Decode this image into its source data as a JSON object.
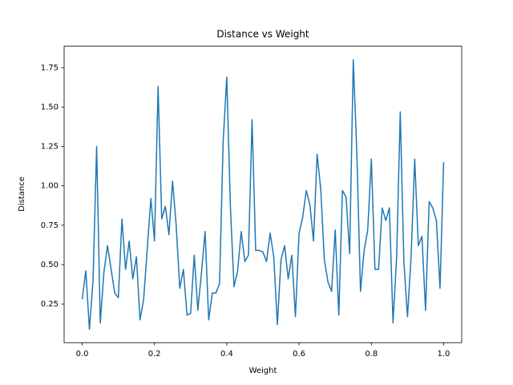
{
  "chart_data": {
    "type": "line",
    "title": "Distance vs Weight",
    "x_label": "Weight",
    "y_label": "Distance",
    "x": [
      0,
      0.01,
      0.02,
      0.03,
      0.04,
      0.05,
      0.06,
      0.07,
      0.08,
      0.09,
      0.1,
      0.11,
      0.12,
      0.13,
      0.14,
      0.15,
      0.16,
      0.17,
      0.18,
      0.19,
      0.2,
      0.21,
      0.22,
      0.23,
      0.24,
      0.25,
      0.26,
      0.27,
      0.28,
      0.29,
      0.3,
      0.31,
      0.32,
      0.33,
      0.34,
      0.35,
      0.36,
      0.37,
      0.38,
      0.39,
      0.4,
      0.41,
      0.42,
      0.43,
      0.44,
      0.45,
      0.46,
      0.47,
      0.48,
      0.49,
      0.5,
      0.51,
      0.52,
      0.53,
      0.54,
      0.55,
      0.56,
      0.57,
      0.58,
      0.59,
      0.6,
      0.61,
      0.62,
      0.63,
      0.64,
      0.65,
      0.66,
      0.67,
      0.68,
      0.69,
      0.7,
      0.71,
      0.72,
      0.73,
      0.74,
      0.75,
      0.76,
      0.77,
      0.78,
      0.79,
      0.8,
      0.81,
      0.82,
      0.83,
      0.84,
      0.85,
      0.86,
      0.87,
      0.88,
      0.89,
      0.9,
      0.91,
      0.92,
      0.93,
      0.94,
      0.95,
      0.96,
      0.97,
      0.98,
      0.99,
      1
    ],
    "series": [
      {
        "color": "#1f77b4",
        "values": [
          0.28,
          0.46,
          0.09,
          0.4,
          1.25,
          0.13,
          0.45,
          0.62,
          0.47,
          0.32,
          0.29,
          0.79,
          0.47,
          0.65,
          0.41,
          0.55,
          0.15,
          0.28,
          0.6,
          0.92,
          0.65,
          1.63,
          0.79,
          0.87,
          0.69,
          1.03,
          0.75,
          0.35,
          0.47,
          0.18,
          0.19,
          0.56,
          0.21,
          0.45,
          0.71,
          0.15,
          0.32,
          0.32,
          0.38,
          1.28,
          1.69,
          0.87,
          0.36,
          0.46,
          0.71,
          0.52,
          0.56,
          1.42,
          0.59,
          0.59,
          0.58,
          0.52,
          0.7,
          0.55,
          0.12,
          0.53,
          0.62,
          0.41,
          0.56,
          0.17,
          0.7,
          0.8,
          0.97,
          0.88,
          0.65,
          1.2,
          0.98,
          0.53,
          0.39,
          0.33,
          0.72,
          0.18,
          0.97,
          0.93,
          0.57,
          1.8,
          1.2,
          0.33,
          0.59,
          0.72,
          1.17,
          0.47,
          0.47,
          0.86,
          0.78,
          0.86,
          0.13,
          0.55,
          1.47,
          0.52,
          0.17,
          0.55,
          1.17,
          0.62,
          0.68,
          0.21,
          0.9,
          0.86,
          0.78,
          0.35,
          1.15
        ]
      }
    ],
    "xlim": [
      -0.05,
      1.05
    ],
    "xticks": [
      {
        "value": 0,
        "label": "0.0"
      },
      {
        "value": 0.2,
        "label": "0.2"
      },
      {
        "value": 0.4,
        "label": "0.4"
      },
      {
        "value": 0.6,
        "label": "0.6"
      },
      {
        "value": 0.8,
        "label": "0.8"
      },
      {
        "value": 1,
        "label": "1.0"
      }
    ],
    "ylim": [
      0.005,
      1.886
    ],
    "yticks": [
      0.25,
      {
        "value": 0.5,
        "label": "0.50"
      },
      0.75,
      {
        "value": 1,
        "label": "1.00"
      },
      1.25,
      {
        "value": 1.5,
        "label": "1.50"
      },
      1.75
    ],
    "grid": false
  }
}
